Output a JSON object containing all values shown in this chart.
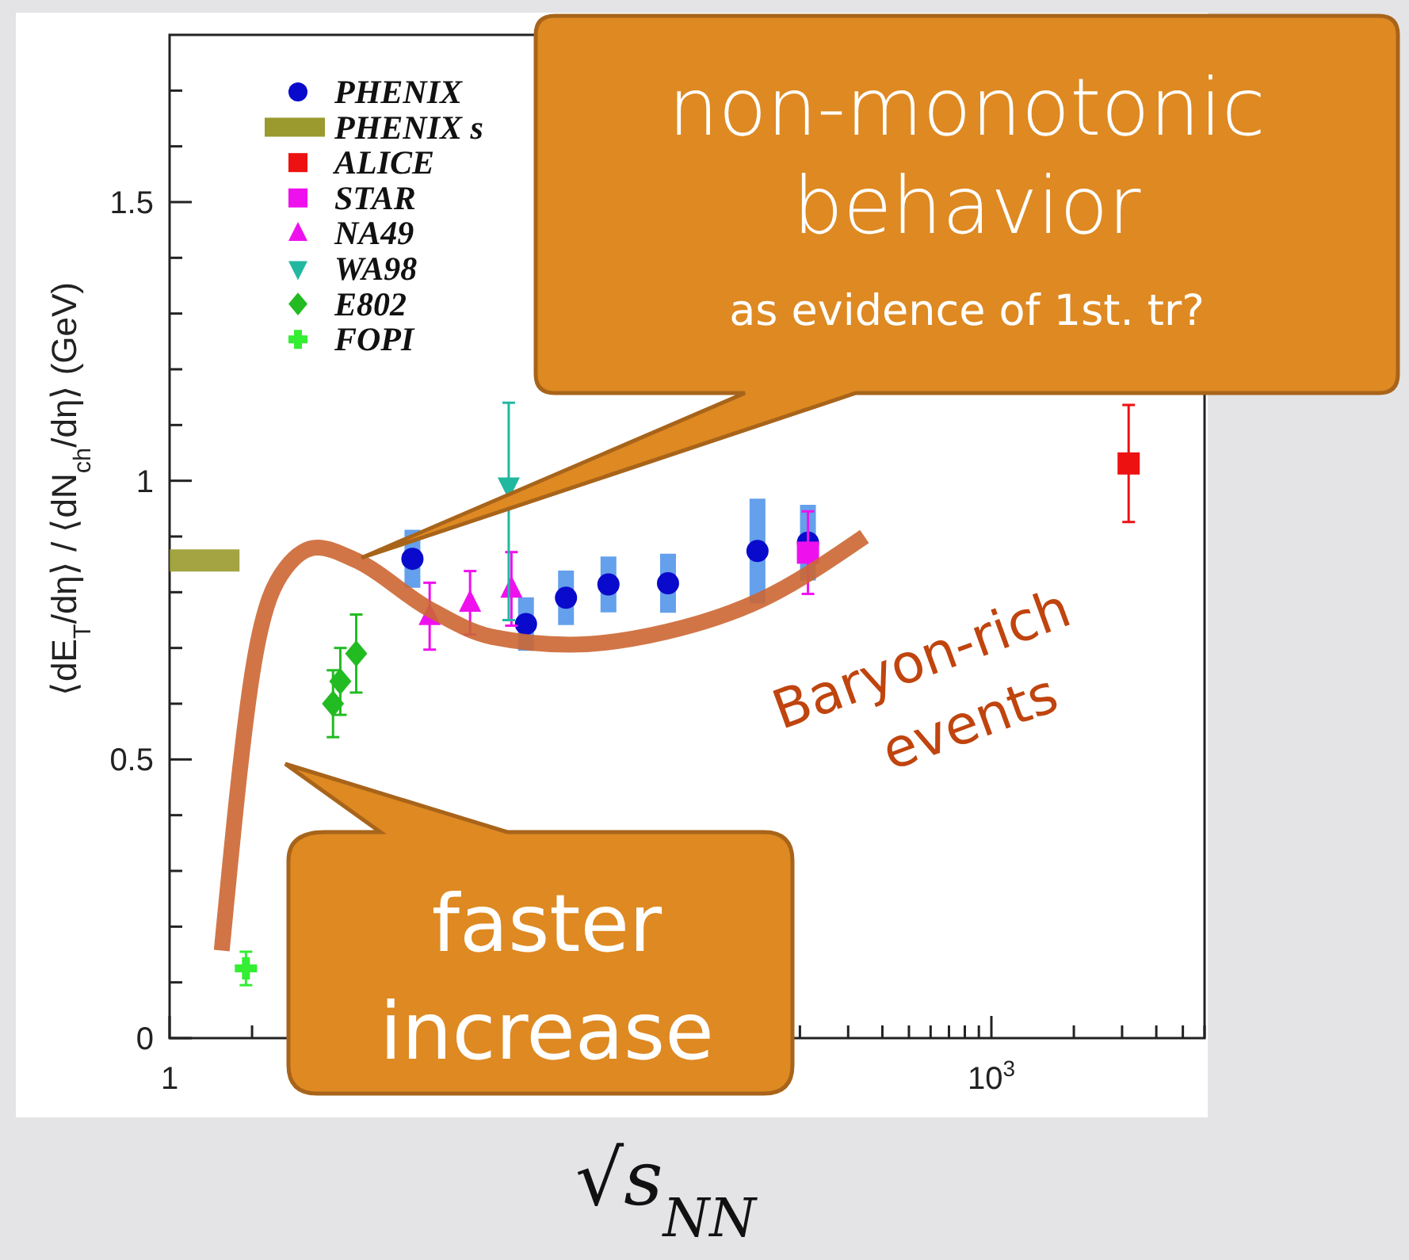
{
  "chart_data": {
    "type": "scatter",
    "xlabel": "√s$_{NN}$",
    "ylabel": "⟨dE$_{T}$/dη⟩ / ⟨dN$_{ch}$/dη⟩  (GeV)",
    "log": "x",
    "xlim": [
      1,
      6000
    ],
    "xticks": [
      1,
      {
        "value": 2,
        "label": null
      },
      {
        "value": 3,
        "label": null
      },
      {
        "value": 4,
        "label": null
      },
      {
        "value": 5,
        "label": null
      },
      {
        "value": 6,
        "label": null
      },
      {
        "value": 7,
        "label": null
      },
      {
        "value": 8,
        "label": null
      },
      {
        "value": 9,
        "label": null
      },
      {
        "value": 200,
        "label": null
      },
      {
        "value": 300,
        "label": null
      },
      {
        "value": 400,
        "label": null
      },
      {
        "value": 500,
        "label": null
      },
      {
        "value": 600,
        "label": null
      },
      {
        "value": 700,
        "label": null
      },
      {
        "value": 800,
        "label": null
      },
      {
        "value": 900,
        "label": null
      },
      {
        "value": 1000,
        "label": "10$^{3}$"
      },
      {
        "value": 2000,
        "label": null
      },
      {
        "value": 3000,
        "label": null
      },
      {
        "value": 4000,
        "label": null
      },
      {
        "value": 5000,
        "label": null
      },
      {
        "value": 6000,
        "label": null
      }
    ],
    "ylim": [
      0,
      1.8
    ],
    "yticks": [
      0,
      {
        "value": 0.1,
        "label": null
      },
      {
        "value": 0.2,
        "label": null
      },
      {
        "value": 0.3,
        "label": null
      },
      {
        "value": 0.4,
        "label": null
      },
      0.5,
      {
        "value": 0.6,
        "label": null
      },
      {
        "value": 0.7,
        "label": null
      },
      {
        "value": 0.8,
        "label": null
      },
      {
        "value": 0.9,
        "label": null
      },
      1,
      {
        "value": 1.1,
        "label": null
      },
      {
        "value": 1.2,
        "label": null
      },
      {
        "value": 1.3,
        "label": null
      },
      {
        "value": 1.4,
        "label": null
      },
      1.5,
      {
        "value": 1.6,
        "label": null
      },
      {
        "value": 1.7,
        "label": null
      }
    ],
    "legend": "top left",
    "series": [
      {
        "name": "PHENIX",
        "color": "#0a0acc",
        "marker": "circle",
        "x": [
          7.7,
          20,
          28,
          40,
          66,
          140,
          214
        ],
        "values": [
          0.86,
          0.743,
          0.79,
          0.814,
          0.816,
          0.874,
          0.889
        ],
        "errors": [
          0.052,
          0.048,
          0.049,
          0.05,
          0.053,
          0.094,
          0.068
        ]
      },
      {
        "name": "PHENIX s",
        "type": "line",
        "marker": "none",
        "color": "#9a9a2e",
        "x": [
          1,
          1.8
        ],
        "values": [
          0.857,
          0.857
        ]
      },
      {
        "name": "ALICE",
        "color": "#ee1111",
        "marker": "square",
        "x": [
          3170
        ],
        "values": [
          1.031
        ],
        "errors": [
          0.105
        ]
      },
      {
        "name": "STAR",
        "color": "#ee11ee",
        "marker": "square",
        "x": [
          214
        ],
        "values": [
          0.871
        ],
        "errors": [
          0.074
        ]
      },
      {
        "name": "NA49",
        "color": "#ee11ee",
        "marker": "triangle",
        "x": [
          8.9,
          12.5,
          17.7
        ],
        "values": [
          0.757,
          0.781,
          0.806
        ],
        "errors": [
          0.06,
          0.057,
          0.066
        ]
      },
      {
        "name": "WA98",
        "color": "#22b8a0",
        "marker": "triangle-down",
        "x": [
          17.3
        ],
        "values": [
          0.99
        ],
        "errors": [
          [
            0.75,
            1.14
          ]
        ]
      },
      {
        "name": "E802",
        "color": "#22bb22",
        "marker": "diamond",
        "x": [
          3.95,
          4.2,
          4.8
        ],
        "values": [
          0.6,
          0.64,
          0.69
        ],
        "errors": [
          0.06,
          0.06,
          0.07
        ]
      },
      {
        "name": "FOPI",
        "color": "#33ee33",
        "marker": "cross",
        "x": [
          1.9
        ],
        "values": [
          0.125
        ],
        "errors": [
          0.03
        ]
      },
      {
        "type": "line",
        "color": "#cc6633",
        "marker": "none",
        "x": [
          1.55,
          2.03,
          2.65,
          3.46,
          4.8,
          8.8,
          15,
          29,
          65,
          144,
          344
        ],
        "values": [
          0.157,
          0.671,
          0.843,
          0.88,
          0.857,
          0.771,
          0.72,
          0.706,
          0.729,
          0.786,
          0.9
        ]
      }
    ],
    "annotations": [
      "non-monotonic behavior",
      "as evidence of 1st. tr?",
      "faster increase",
      "Baryon-rich events"
    ]
  }
}
